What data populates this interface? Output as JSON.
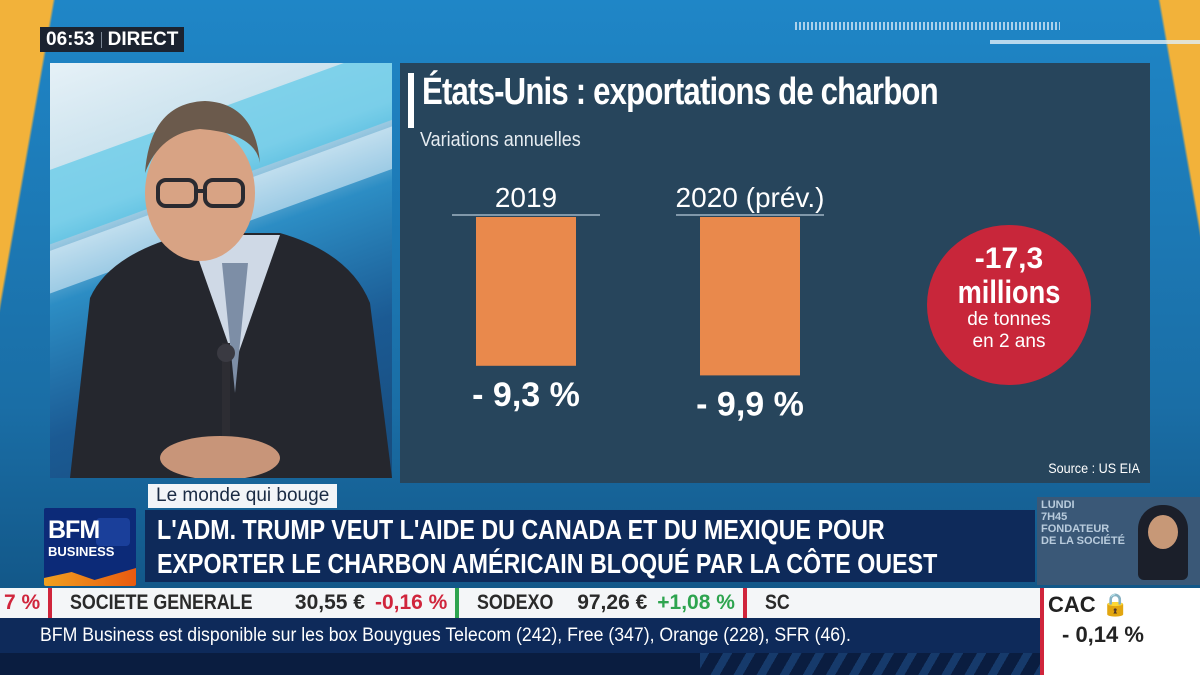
{
  "clock": {
    "time": "06:53",
    "live": "DIRECT"
  },
  "chart_data": {
    "type": "bar",
    "title": "États-Unis : exportations de charbon",
    "subtitle": "Variations annuelles",
    "categories": [
      "2019",
      "2020 (prév.)"
    ],
    "values": [
      -9.3,
      -9.9
    ],
    "value_labels": [
      "- 9,3 %",
      "- 9,9 %"
    ],
    "unit": "%",
    "bar_color": "#e9894c",
    "source": "Source : US EIA",
    "callout": {
      "line1": "-17,3",
      "line2": "millions",
      "line3": "de tonnes",
      "line4": "en 2 ans",
      "color": "#c8263a"
    }
  },
  "lower_third": {
    "tag": "Le monde qui bouge",
    "headline_line1": "L'ADM. TRUMP VEUT L'AIDE DU CANADA ET DU MEXIQUE POUR",
    "headline_line2": "EXPORTER LE CHARBON AMÉRICAIN BLOQUÉ PAR LA CÔTE OUEST",
    "logo_top": "BFM",
    "logo_bottom": "BUSINESS"
  },
  "thumbnail": {
    "line1": "LUNDI",
    "line2": "7H45",
    "line3": "FONDATEUR",
    "line4": "DE LA SOCIÉTÉ"
  },
  "ticker": {
    "lead": "7 %",
    "items": [
      {
        "name": "SOCIETE GENERALE",
        "price": "30,55 €",
        "change": "-0,16 %",
        "dir": "down"
      },
      {
        "name": "SODEXO",
        "price": "97,26 €",
        "change": "+1,08 %",
        "dir": "up"
      },
      {
        "name": "SC",
        "price": "",
        "change": "",
        "dir": ""
      }
    ]
  },
  "index": {
    "name": "CAC",
    "change": "- 0,14 %"
  },
  "info_bar": "BFM Business est disponible sur les box Bouygues Telecom (242), Free (347), Orange (228), SFR (46)."
}
